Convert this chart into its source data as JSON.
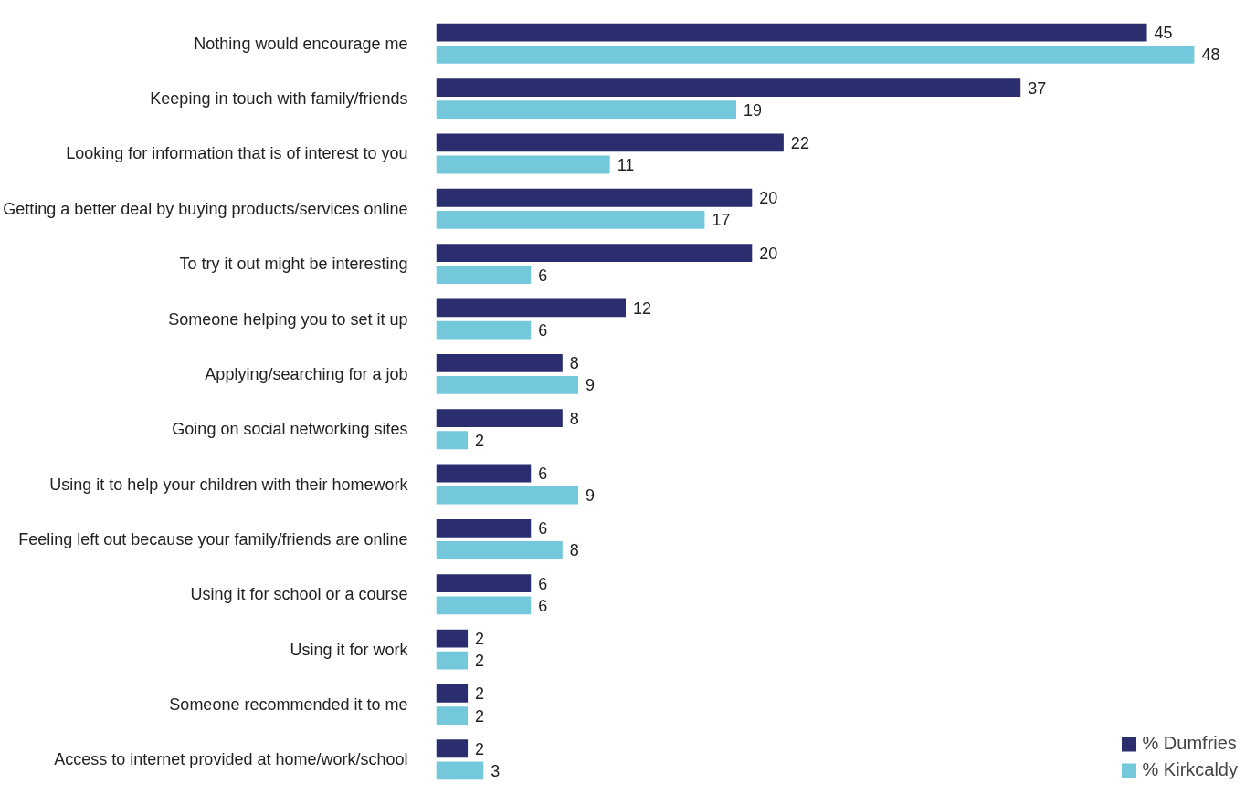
{
  "chart_data": {
    "type": "bar",
    "orientation": "horizontal",
    "categories": [
      "Nothing would encourage me",
      "Keeping in touch with family/friends",
      "Looking for information that is of interest to you",
      "Getting a better deal by buying products/services online",
      "To try it out might be interesting",
      "Someone helping you to set it up",
      "Applying/searching for a job",
      "Going on social networking sites",
      "Using it to help your children with their homework",
      "Feeling left out because your family/friends are online",
      "Using it for school or a course",
      "Using it for work",
      "Someone recommended it to me",
      "Access to internet provided at home/work/school"
    ],
    "series": [
      {
        "name": "% Dumfries",
        "color": "#2a2d6e",
        "values": [
          45,
          37,
          22,
          20,
          20,
          12,
          8,
          8,
          6,
          6,
          6,
          2,
          2,
          2
        ]
      },
      {
        "name": "% Kirkcaldy",
        "color": "#74c8dc",
        "values": [
          48,
          19,
          11,
          17,
          6,
          6,
          9,
          2,
          9,
          8,
          6,
          2,
          2,
          3
        ]
      }
    ],
    "data_labels": true,
    "legend": "bottom right"
  }
}
